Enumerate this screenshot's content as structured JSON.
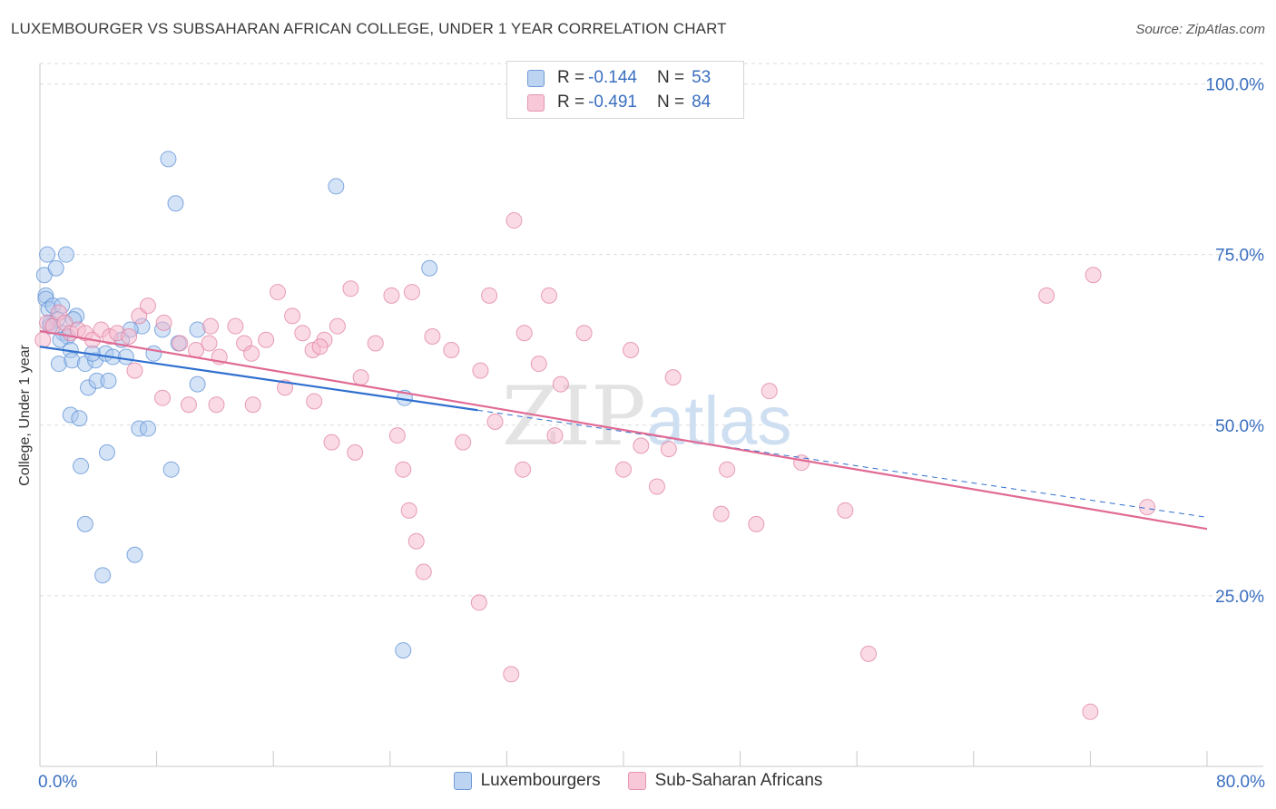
{
  "title": "LUXEMBOURGER VS SUBSAHARAN AFRICAN COLLEGE, UNDER 1 YEAR CORRELATION CHART",
  "source": "Source: ZipAtlas.com",
  "watermark": {
    "zip": "ZIP",
    "atlas": "atlas"
  },
  "legend_top": {
    "rows": [
      {
        "r_label": "R =",
        "r_value": "-0.144",
        "n_label": "N =",
        "n_value": "53"
      },
      {
        "r_label": "R =",
        "r_value": "-0.491",
        "n_label": "N =",
        "n_value": "84"
      }
    ]
  },
  "legend_bottom": {
    "items": [
      "Luxembourgers",
      "Sub-Saharan Africans"
    ]
  },
  "colors": {
    "blue_fill": "#aac8ee",
    "blue_stroke": "#5b8fd6",
    "blue_line": "#2f6fcf",
    "pink_fill": "#f5b8cc",
    "pink_stroke": "#e07fa0",
    "pink_line": "#e06a94",
    "grid": "#dcdcdc",
    "tick_text": "#3a6fc0"
  },
  "chart_data": {
    "type": "scatter",
    "title": "LUXEMBOURGER VS SUBSAHARAN AFRICAN COLLEGE, UNDER 1 YEAR CORRELATION CHART",
    "xlabel": "",
    "ylabel": "College, Under 1 year",
    "xlim": [
      0,
      80
    ],
    "ylim": [
      0,
      103
    ],
    "x_tick_labels": [
      "0.0%",
      "80.0%"
    ],
    "y_ticks": [
      25,
      50,
      75,
      100
    ],
    "y_tick_labels": [
      "25.0%",
      "50.0%",
      "75.0%",
      "100.0%"
    ],
    "grid": true,
    "series": [
      {
        "name": "Luxembourgers",
        "r": -0.144,
        "n": 53,
        "trend": {
          "x0": 0,
          "y0": 61.5,
          "x1": 30,
          "y1": 52.2,
          "dash_to_x": 80,
          "dash_to_y": 36.5
        },
        "points": [
          [
            0.4,
            69.0
          ],
          [
            0.3,
            72.0
          ],
          [
            0.5,
            75.0
          ],
          [
            1.1,
            73.0
          ],
          [
            1.8,
            75.0
          ],
          [
            0.4,
            68.5
          ],
          [
            0.6,
            67.0
          ],
          [
            0.9,
            67.5
          ],
          [
            1.5,
            67.5
          ],
          [
            0.7,
            65.0
          ],
          [
            1.2,
            65.5
          ],
          [
            1.6,
            63.5
          ],
          [
            2.5,
            66.0
          ],
          [
            2.3,
            65.5
          ],
          [
            1.9,
            63.0
          ],
          [
            1.4,
            62.5
          ],
          [
            2.1,
            61.0
          ],
          [
            1.3,
            59.0
          ],
          [
            2.2,
            59.5
          ],
          [
            3.1,
            59.0
          ],
          [
            3.8,
            59.5
          ],
          [
            4.5,
            60.5
          ],
          [
            5.0,
            60.0
          ],
          [
            5.6,
            62.5
          ],
          [
            5.9,
            60.0
          ],
          [
            3.3,
            55.5
          ],
          [
            3.9,
            56.5
          ],
          [
            4.7,
            56.5
          ],
          [
            2.1,
            51.5
          ],
          [
            2.7,
            51.0
          ],
          [
            6.8,
            49.5
          ],
          [
            7.4,
            49.5
          ],
          [
            4.6,
            46.0
          ],
          [
            2.8,
            44.0
          ],
          [
            9.0,
            43.5
          ],
          [
            3.1,
            35.5
          ],
          [
            6.5,
            31.0
          ],
          [
            4.3,
            28.0
          ],
          [
            7.0,
            64.5
          ],
          [
            8.4,
            64.0
          ],
          [
            10.8,
            64.0
          ],
          [
            9.5,
            62.0
          ],
          [
            8.8,
            89.0
          ],
          [
            9.3,
            82.5
          ],
          [
            20.3,
            85.0
          ],
          [
            26.7,
            73.0
          ],
          [
            25.0,
            54.0
          ],
          [
            10.8,
            56.0
          ],
          [
            24.9,
            17.0
          ],
          [
            7.8,
            60.5
          ],
          [
            6.2,
            64.0
          ],
          [
            3.6,
            60.5
          ],
          [
            0.7,
            64.5
          ]
        ]
      },
      {
        "name": "Sub-Saharan Africans",
        "r": -0.491,
        "n": 84,
        "trend": {
          "x0": 0,
          "y0": 63.8,
          "x1": 80,
          "y1": 34.8
        },
        "points": [
          [
            0.2,
            62.5
          ],
          [
            0.5,
            65.0
          ],
          [
            0.9,
            64.5
          ],
          [
            1.3,
            66.5
          ],
          [
            1.7,
            65.0
          ],
          [
            2.1,
            63.5
          ],
          [
            2.6,
            64.0
          ],
          [
            3.1,
            63.5
          ],
          [
            3.6,
            62.5
          ],
          [
            4.2,
            64.0
          ],
          [
            4.8,
            63.0
          ],
          [
            5.3,
            63.5
          ],
          [
            6.1,
            63.0
          ],
          [
            6.8,
            66.0
          ],
          [
            7.4,
            67.5
          ],
          [
            8.5,
            65.0
          ],
          [
            9.6,
            62.0
          ],
          [
            10.7,
            61.0
          ],
          [
            11.7,
            64.5
          ],
          [
            12.3,
            60.0
          ],
          [
            13.4,
            64.5
          ],
          [
            14.0,
            62.0
          ],
          [
            14.5,
            60.5
          ],
          [
            15.5,
            62.5
          ],
          [
            16.3,
            69.5
          ],
          [
            17.3,
            66.0
          ],
          [
            18.0,
            63.5
          ],
          [
            18.7,
            61.0
          ],
          [
            19.5,
            62.5
          ],
          [
            20.4,
            64.5
          ],
          [
            21.3,
            70.0
          ],
          [
            22.0,
            57.0
          ],
          [
            23.0,
            62.0
          ],
          [
            24.1,
            69.0
          ],
          [
            25.5,
            69.5
          ],
          [
            26.9,
            63.0
          ],
          [
            28.2,
            61.0
          ],
          [
            30.2,
            58.0
          ],
          [
            30.8,
            69.0
          ],
          [
            32.5,
            80.0
          ],
          [
            33.2,
            63.5
          ],
          [
            34.2,
            59.0
          ],
          [
            34.9,
            69.0
          ],
          [
            35.7,
            56.0
          ],
          [
            37.3,
            63.5
          ],
          [
            40.5,
            61.0
          ],
          [
            41.2,
            47.0
          ],
          [
            43.1,
            46.5
          ],
          [
            43.4,
            57.0
          ],
          [
            42.3,
            41.0
          ],
          [
            46.7,
            37.0
          ],
          [
            47.1,
            43.5
          ],
          [
            49.1,
            35.5
          ],
          [
            50.0,
            55.0
          ],
          [
            52.2,
            44.5
          ],
          [
            55.2,
            37.5
          ],
          [
            56.8,
            16.5
          ],
          [
            69.0,
            69.0
          ],
          [
            72.2,
            72.0
          ],
          [
            75.9,
            38.0
          ],
          [
            72.0,
            8.0
          ],
          [
            19.2,
            61.5
          ],
          [
            20.0,
            47.5
          ],
          [
            21.6,
            46.0
          ],
          [
            24.5,
            48.5
          ],
          [
            24.9,
            43.5
          ],
          [
            25.3,
            37.5
          ],
          [
            25.8,
            33.0
          ],
          [
            26.3,
            28.5
          ],
          [
            29.0,
            47.5
          ],
          [
            30.1,
            24.0
          ],
          [
            31.2,
            50.5
          ],
          [
            32.3,
            13.5
          ],
          [
            33.1,
            43.5
          ],
          [
            35.3,
            48.5
          ],
          [
            40.0,
            43.5
          ],
          [
            12.1,
            53.0
          ],
          [
            14.6,
            53.0
          ],
          [
            16.8,
            55.5
          ],
          [
            18.8,
            53.5
          ],
          [
            6.5,
            58.0
          ],
          [
            8.4,
            54.0
          ],
          [
            10.2,
            53.0
          ],
          [
            11.6,
            62.0
          ]
        ]
      }
    ]
  }
}
